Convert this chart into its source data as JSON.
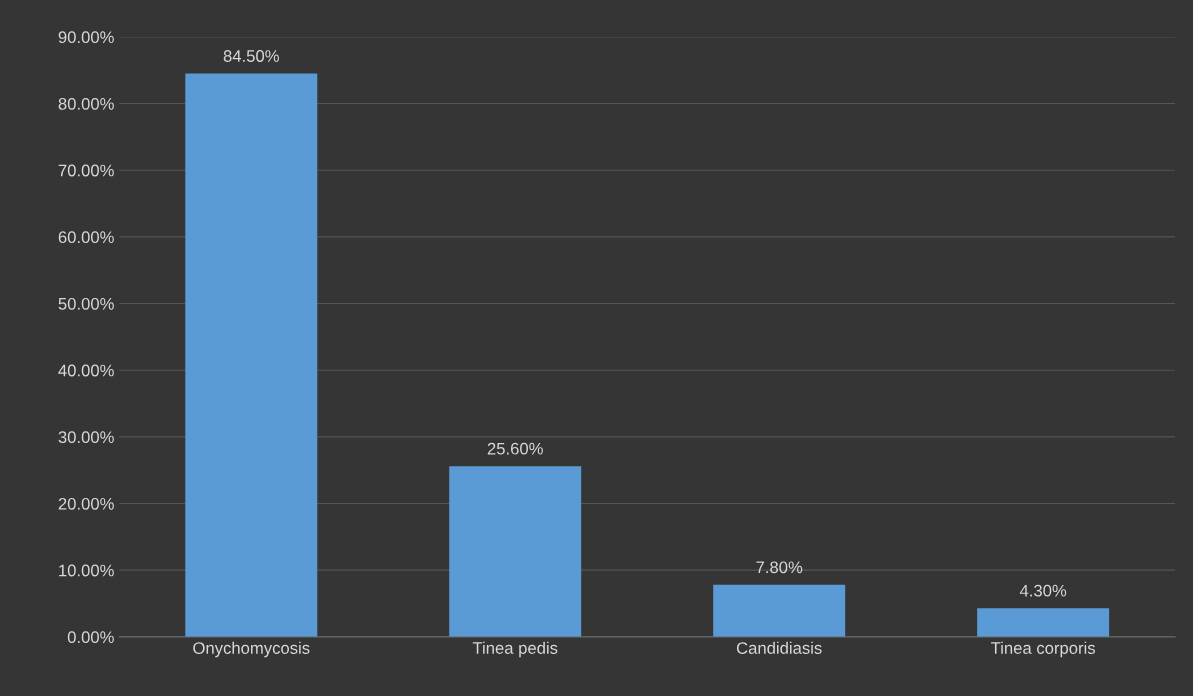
{
  "chart_data": {
    "type": "bar",
    "categories": [
      "Onychomycosis",
      "Tinea pedis",
      "Candidiasis",
      "Tinea corporis"
    ],
    "values": [
      84.5,
      25.6,
      7.8,
      4.3
    ],
    "value_labels": [
      "84.50%",
      "25.60%",
      "7.80%",
      "4.30%"
    ],
    "color": "#5b9bd5",
    "ylim": [
      0,
      90
    ],
    "yticks": [
      {
        "value": 0,
        "label": "0.00%"
      },
      {
        "value": 10,
        "label": "10.00%"
      },
      {
        "value": 20,
        "label": "20.00%"
      },
      {
        "value": 30,
        "label": "30.00%"
      },
      {
        "value": 40,
        "label": "40.00%"
      },
      {
        "value": 50,
        "label": "50.00%"
      },
      {
        "value": 60,
        "label": "60.00%"
      },
      {
        "value": 70,
        "label": "70.00%"
      },
      {
        "value": 80,
        "label": "80.00%"
      },
      {
        "value": 90,
        "label": "90.00%"
      }
    ],
    "grid": "y",
    "legend": false
  }
}
